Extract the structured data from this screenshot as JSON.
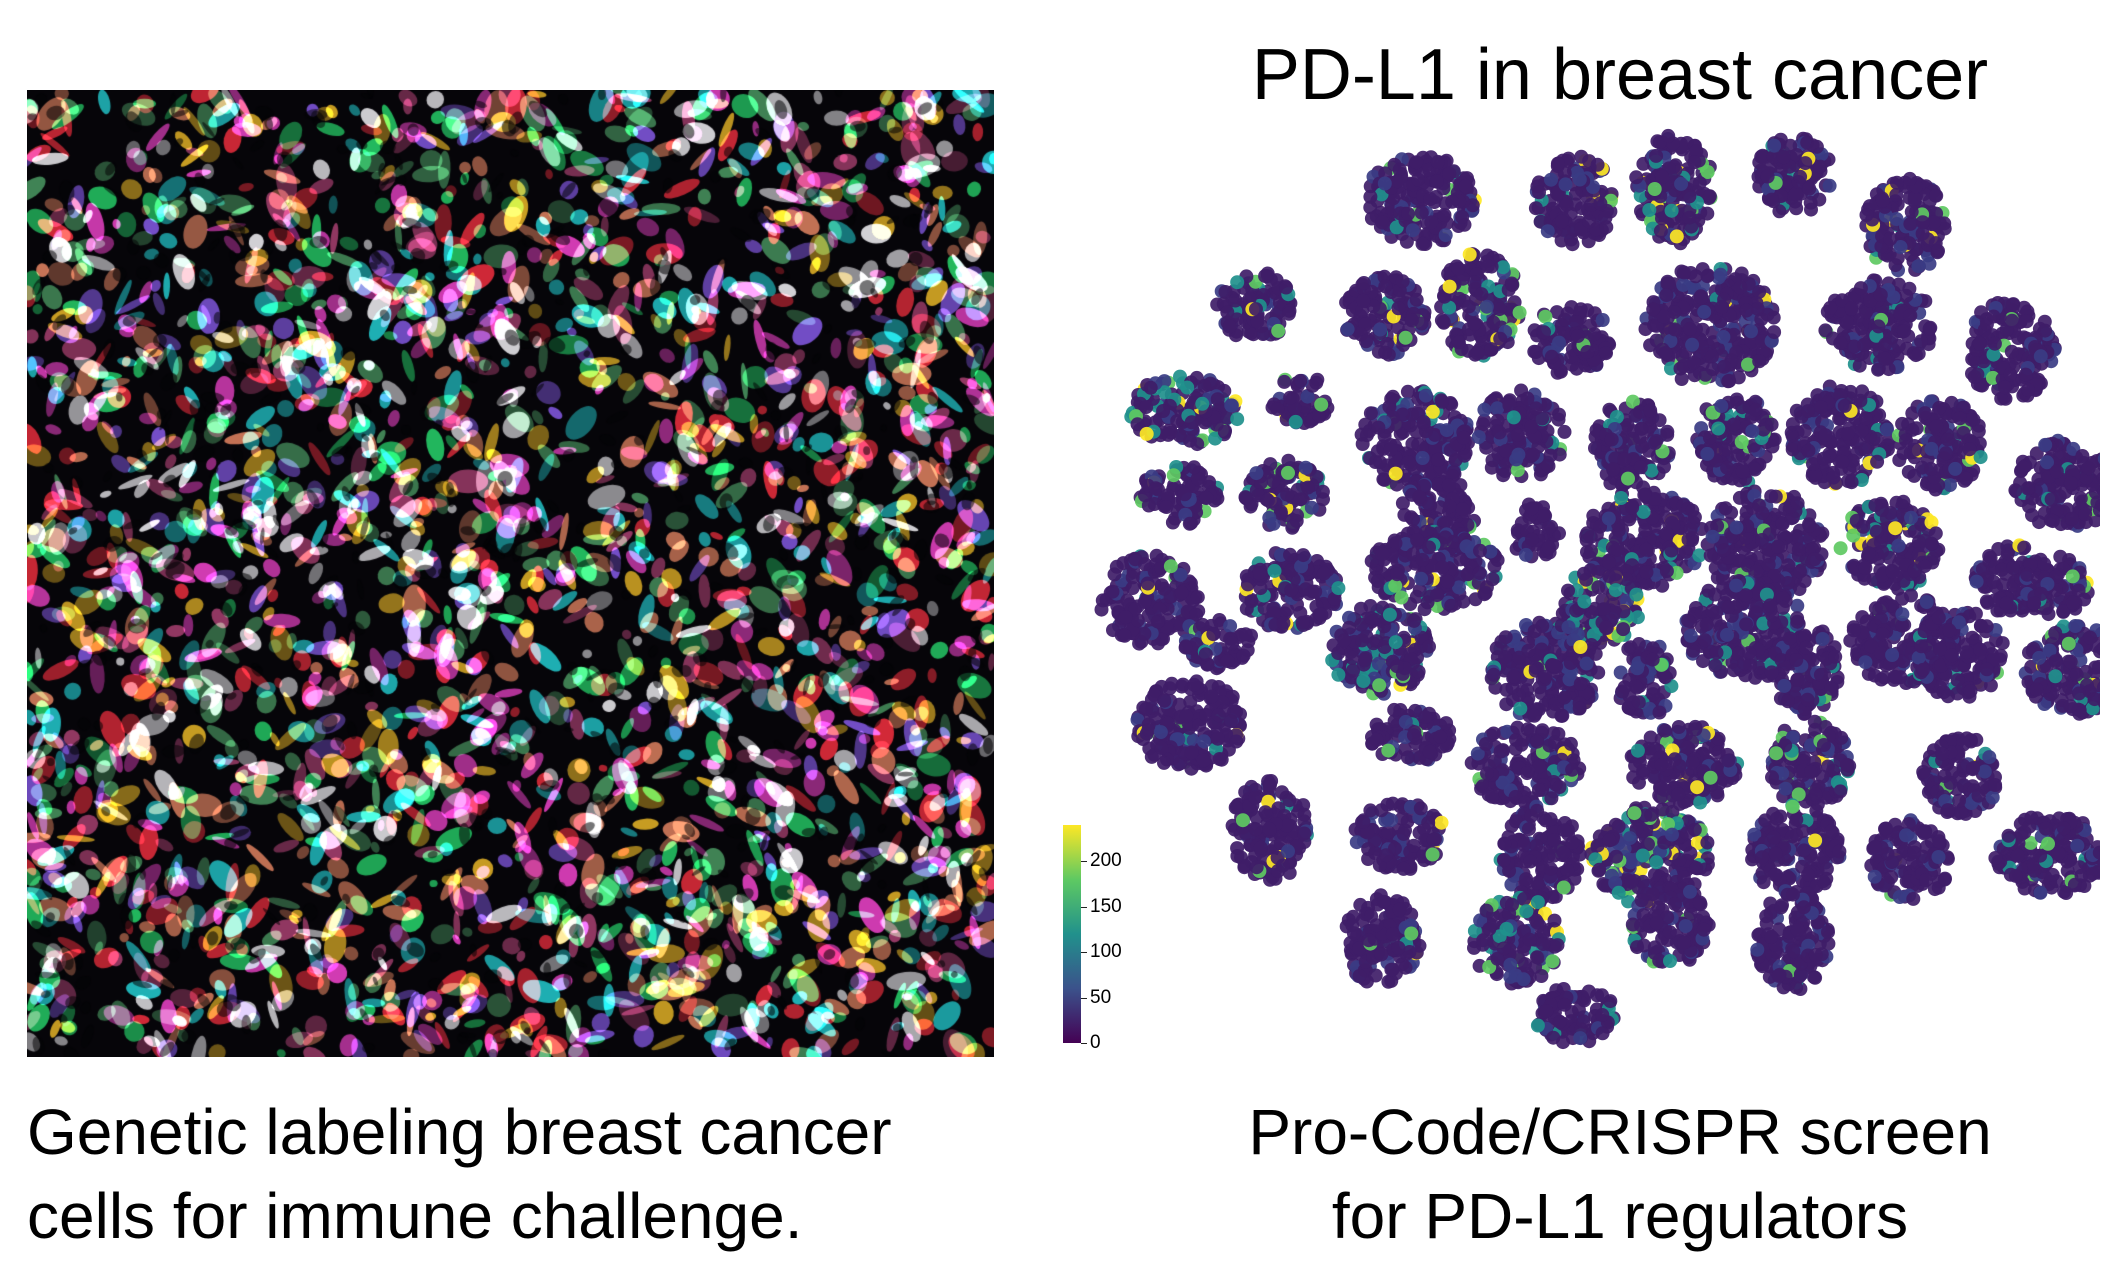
{
  "left_panel": {
    "image_description_hidden": "",
    "caption_line1": "Genetic labeling breast cancer",
    "caption_line2": "cells for immune challenge."
  },
  "right_panel": {
    "title": "PD-L1 in breast cancer",
    "caption_line1": "Pro-Code/CRISPR screen",
    "caption_line2": "for PD-L1 regulators"
  },
  "colorbar": {
    "ticks": [
      "200",
      "150",
      "100",
      "50",
      "0"
    ],
    "tick_values": [
      200,
      150,
      100,
      50,
      0
    ],
    "range": [
      0,
      240
    ],
    "colormap": [
      "#440154",
      "#3b528b",
      "#21918c",
      "#5ec962",
      "#fde725"
    ]
  },
  "micrograph_palette": [
    "#ff2d3a",
    "#23e06a",
    "#1fd8d8",
    "#ff44d4",
    "#f5c020",
    "#ffffff",
    "#f08a60",
    "#8a5cf0",
    "#b04070",
    "#4aa060"
  ]
}
